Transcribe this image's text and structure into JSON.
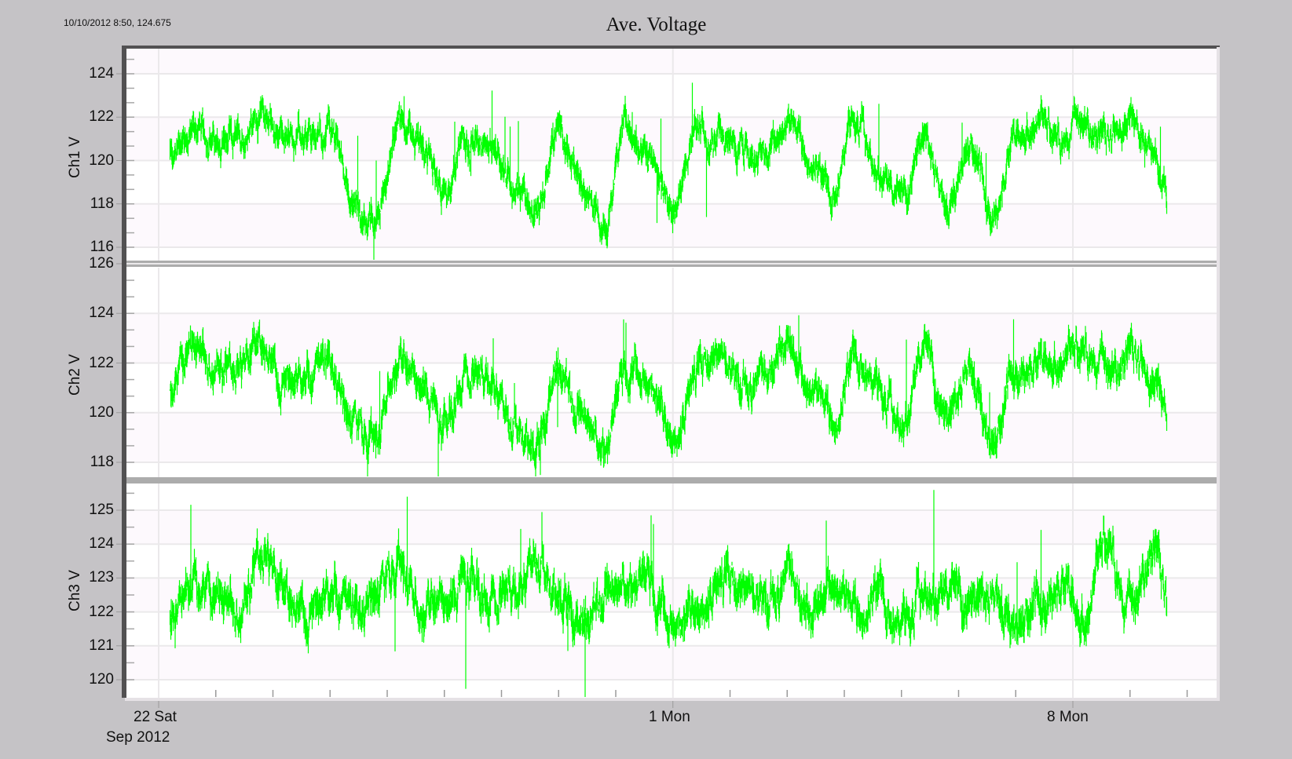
{
  "cursor_readout": "10/10/2012 8:50, 124.675",
  "title": "Ave. Voltage",
  "colors": {
    "background": "#c5c3c6",
    "plot_band_a": "#fdf9fd",
    "plot_band_b": "#ffffff",
    "grid": "#ebe9eb",
    "trace": "#00ff00",
    "frame": "#525152",
    "separator": "#acacac"
  },
  "x_axis": {
    "labels": [
      {
        "text": "22 Sat",
        "day": 22
      },
      {
        "text": "1 Mon",
        "day": 31
      },
      {
        "text": "8 Mon",
        "day": 38
      }
    ],
    "sublabel": "Sep 2012",
    "range_days": [
      21.85,
      41.05
    ],
    "minor_tick_days": [
      23,
      24,
      25,
      26,
      27,
      28,
      29,
      30,
      32,
      33,
      34,
      35,
      36,
      37,
      39,
      40
    ]
  },
  "panels": [
    {
      "ylabel": "Ch1 V",
      "yticks": [
        "116",
        "118",
        "120",
        "122",
        "124"
      ],
      "ytick_values": [
        116,
        118,
        120,
        122,
        124
      ],
      "ylim": [
        115.5,
        125.5
      ]
    },
    {
      "ylabel": "Ch2 V",
      "yticks": [
        "118",
        "120",
        "122",
        "124",
        "126"
      ],
      "ytick_values": [
        118,
        120,
        122,
        124,
        126
      ],
      "ylim": [
        117.3,
        126.0
      ]
    },
    {
      "ylabel": "Ch3 V",
      "yticks": [
        "120",
        "121",
        "122",
        "123",
        "124",
        "125"
      ],
      "ytick_values": [
        120,
        121,
        122,
        123,
        124,
        125
      ],
      "ylim": [
        119.5,
        125.8
      ]
    }
  ],
  "chart_data": {
    "type": "line",
    "title": "Ave. Voltage",
    "xlabel": "Sep 2012",
    "x_tick_labels": [
      "22 Sat",
      "1 Mon",
      "8 Mon"
    ],
    "x": [
      22.2,
      22.6,
      23.0,
      23.4,
      23.8,
      24.2,
      24.6,
      25.0,
      25.4,
      25.8,
      26.2,
      26.6,
      27.0,
      27.4,
      27.8,
      28.2,
      28.6,
      29.0,
      29.4,
      29.8,
      30.2,
      30.6,
      31.0,
      31.4,
      31.8,
      32.2,
      32.6,
      33.0,
      33.4,
      33.8,
      34.2,
      34.6,
      35.0,
      35.4,
      35.8,
      36.2,
      36.6,
      37.0,
      37.4,
      37.8,
      38.2,
      38.6,
      39.0,
      39.4,
      39.65
    ],
    "x_units": "day of Sep 2012 (Oct dates = day - 30)",
    "series": [
      {
        "name": "Ch1 V",
        "ylim": [
          115.5,
          125.5
        ],
        "values": [
          120.3,
          121.5,
          120.6,
          121.0,
          122.2,
          121.0,
          120.8,
          121.5,
          118.3,
          117.2,
          121.5,
          120.6,
          118.5,
          121.0,
          121.0,
          118.5,
          117.8,
          121.5,
          119.0,
          117.2,
          121.5,
          120.0,
          117.8,
          121.0,
          121.2,
          120.2,
          120.5,
          121.8,
          120.3,
          118.7,
          121.8,
          119.5,
          118.2,
          121.0,
          118.0,
          120.8,
          117.7,
          121.2,
          121.6,
          121.0,
          121.8,
          121.1,
          122.0,
          120.5,
          118.5
        ]
      },
      {
        "name": "Ch2 V",
        "ylim": [
          117.3,
          126.0
        ],
        "values": [
          121.0,
          122.5,
          121.8,
          121.5,
          122.8,
          121.5,
          121.4,
          122.0,
          119.6,
          119.2,
          122.0,
          121.2,
          119.5,
          121.5,
          121.5,
          119.5,
          118.8,
          122.0,
          119.8,
          118.5,
          122.0,
          121.0,
          119.0,
          121.6,
          122.2,
          121.2,
          121.3,
          122.8,
          121.2,
          119.8,
          122.5,
          120.8,
          119.5,
          122.5,
          119.8,
          121.8,
          119.0,
          121.8,
          122.2,
          122.0,
          122.5,
          121.7,
          122.5,
          121.5,
          120.2
        ]
      },
      {
        "name": "Ch3 V",
        "ylim": [
          119.5,
          125.8
        ],
        "values": [
          121.8,
          123.0,
          122.3,
          122.0,
          123.5,
          122.5,
          122.2,
          122.6,
          122.0,
          122.5,
          123.6,
          122.0,
          122.3,
          123.0,
          122.3,
          122.7,
          123.5,
          122.6,
          121.9,
          122.5,
          122.7,
          123.0,
          121.5,
          122.0,
          123.0,
          122.6,
          122.3,
          123.0,
          121.9,
          123.0,
          122.0,
          122.8,
          121.5,
          122.5,
          122.6,
          122.3,
          122.5,
          121.8,
          122.3,
          123.0,
          121.8,
          124.0,
          122.0,
          124.0,
          122.6
        ]
      }
    ],
    "legend": [],
    "grid": true
  }
}
